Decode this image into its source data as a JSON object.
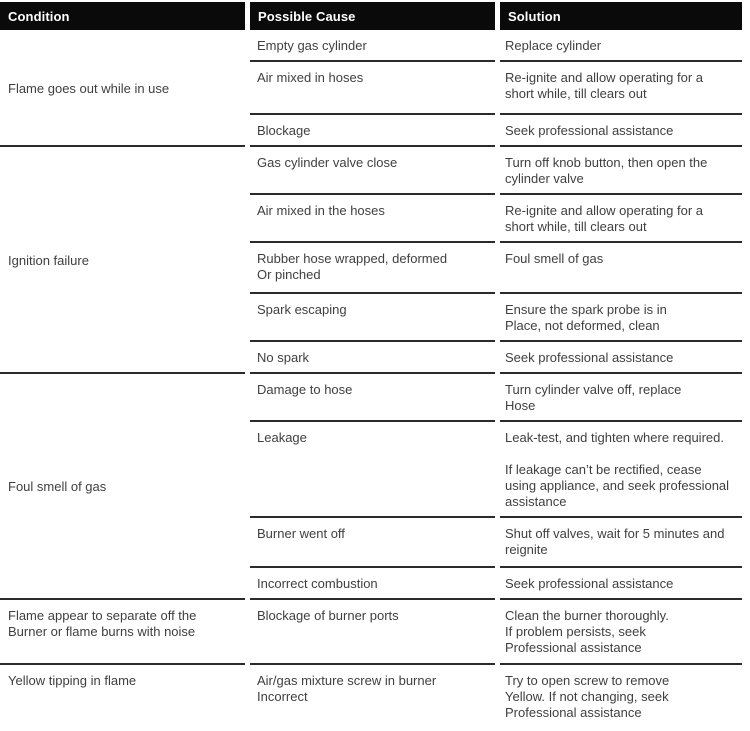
{
  "header": {
    "condition": "Condition",
    "possible_cause": "Possible Cause",
    "solution": "Solution"
  },
  "sections": [
    {
      "condition": "Flame goes out while in use",
      "rows": [
        {
          "cause": "Empty gas cylinder",
          "solution": "Replace cylinder"
        },
        {
          "cause": "Air mixed in hoses",
          "solution": "Re-ignite and allow operating for a\nshort while, till clears out"
        },
        {
          "cause": "Blockage",
          "solution": "Seek professional assistance"
        }
      ]
    },
    {
      "condition": "Ignition failure",
      "rows": [
        {
          "cause": "Gas cylinder valve close",
          "solution": "Turn off knob button, then open the\ncylinder valve"
        },
        {
          "cause": "Air mixed in the hoses",
          "solution": "Re-ignite and allow operating for a\nshort while, till clears out"
        },
        {
          "cause": "Rubber hose wrapped, deformed\nOr pinched",
          "solution": "Foul smell of gas"
        },
        {
          "cause": "Spark escaping",
          "solution": "Ensure the spark probe is in\nPlace, not deformed, clean"
        },
        {
          "cause": "No spark",
          "solution": "Seek professional assistance"
        }
      ]
    },
    {
      "condition": "Foul smell of gas",
      "rows": [
        {
          "cause": "Damage to hose",
          "solution": "Turn cylinder valve off, replace\nHose"
        },
        {
          "cause": "Leakage",
          "solution": "Leak-test, and tighten where required.\n\nIf leakage can’t be rectified, cease\nusing appliance, and seek professional\nassistance"
        },
        {
          "cause": "Burner went off",
          "solution": "Shut off valves, wait for 5 minutes and\nreignite"
        },
        {
          "cause": "Incorrect combustion",
          "solution": "Seek professional assistance"
        }
      ]
    },
    {
      "condition": "Flame appear to separate off the\nBurner or flame burns with noise",
      "rows": [
        {
          "cause": "Blockage of burner ports",
          "solution": "Clean the burner thoroughly.\nIf problem persists, seek\nProfessional assistance"
        }
      ]
    },
    {
      "condition": "Yellow tipping in flame",
      "rows": [
        {
          "cause": "Air/gas mixture screw in burner\nIncorrect",
          "solution": "Try to open screw to remove\nYellow. If not changing, seek\nProfessional assistance"
        }
      ]
    }
  ],
  "colors": {
    "header_bg": "#0a0a0a",
    "header_text": "#ffffff",
    "body_text": "#3f3f3f",
    "rule": "#2b2b2b"
  }
}
